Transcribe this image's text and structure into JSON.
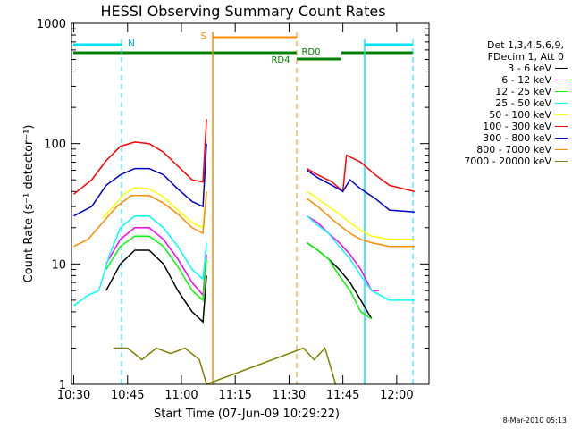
{
  "chart_data": {
    "type": "line",
    "title": "HESSI Observing Summary Count Rates",
    "xlabel": "Start Time (07-Jun-09 10:29:22)",
    "ylabel": "Count Rate (s⁻¹ detector⁻¹)",
    "yscale": "log",
    "ylim": [
      1,
      1000
    ],
    "xlim": [
      "10:29:22",
      "12:09:00"
    ],
    "x_ticks": [
      "10:30",
      "10:45",
      "11:00",
      "11:15",
      "11:30",
      "11:45",
      "12:00"
    ],
    "y_ticks": [
      "1",
      "10",
      "100",
      "1000"
    ],
    "grid": false,
    "legend_position": "right",
    "legend_header": [
      "Det 1,3,4,5,6,9,",
      "FDecim 1, Att 0"
    ],
    "series": [
      {
        "name": "3 - 6 keV",
        "color": "#000000",
        "x": [
          "10:31",
          "10:35",
          "10:39",
          "10:43",
          "10:47",
          "10:51",
          "10:55",
          "10:59",
          "11:03",
          "11:06",
          "11:07",
          "11:08",
          "11:35",
          "11:38",
          "11:41",
          "11:44",
          "11:47",
          "11:50",
          "11:53"
        ],
        "values": [
          null,
          null,
          6,
          10,
          13,
          13,
          10,
          6,
          4,
          3.3,
          8,
          null,
          15,
          13,
          11,
          9,
          7,
          5,
          3.5
        ]
      },
      {
        "name": "6 - 12 keV",
        "color": "#ff00ff",
        "x": [
          "10:39",
          "10:43",
          "10:47",
          "10:51",
          "10:55",
          "10:59",
          "11:03",
          "11:06",
          "11:07",
          "11:08",
          "11:35",
          "11:38",
          "11:41",
          "11:44",
          "11:47",
          "11:50",
          "11:53",
          "11:55"
        ],
        "values": [
          10,
          16,
          20,
          20,
          16,
          11,
          7,
          5.5,
          12,
          null,
          25,
          22,
          18,
          15,
          12,
          9,
          6,
          6
        ]
      },
      {
        "name": "12 - 25 keV",
        "color": "#00ff00",
        "x": [
          "10:39",
          "10:43",
          "10:47",
          "10:51",
          "10:55",
          "10:59",
          "11:03",
          "11:06",
          "11:07",
          "11:08",
          "11:35",
          "11:38",
          "11:41",
          "11:44",
          "11:47",
          "11:50",
          "11:53"
        ],
        "values": [
          9,
          14,
          17,
          17,
          14,
          9.5,
          6,
          5,
          11,
          null,
          15,
          13,
          11,
          8,
          6,
          4,
          3.5
        ]
      },
      {
        "name": "25 - 50 keV",
        "color": "#00ffff",
        "x": [
          "10:30",
          "10:34",
          "10:37",
          "10:40",
          "10:43",
          "10:47",
          "10:51",
          "10:55",
          "10:59",
          "11:03",
          "11:06",
          "11:07",
          "11:08",
          "11:35",
          "11:38",
          "11:41",
          "11:44",
          "11:47",
          "11:50",
          "11:53",
          "11:58",
          "12:05"
        ],
        "values": [
          4.5,
          5.5,
          6,
          12,
          20,
          25,
          25,
          20,
          14,
          9,
          7.5,
          15,
          null,
          25,
          21,
          18,
          14,
          11,
          8,
          6,
          5,
          5
        ]
      },
      {
        "name": "50 - 100 keV",
        "color": "#ffff00",
        "x": [
          "10:38",
          "10:41",
          "10:44",
          "10:47",
          "10:51",
          "10:55",
          "10:59",
          "11:03",
          "11:06",
          "11:07",
          "11:08",
          "11:35",
          "11:38",
          "11:41",
          "11:44",
          "11:47",
          "11:50",
          "11:53",
          "11:58",
          "12:05"
        ],
        "values": [
          24,
          30,
          38,
          43,
          42,
          36,
          28,
          22,
          20,
          40,
          null,
          40,
          35,
          30,
          26,
          22,
          19,
          17,
          16,
          16
        ]
      },
      {
        "name": "100 - 300 keV",
        "color": "#ff0000",
        "x": [
          "10:30",
          "10:35",
          "10:39",
          "10:43",
          "10:47",
          "10:51",
          "10:55",
          "10:59",
          "11:03",
          "11:06",
          "11:07",
          "11:08",
          "11:35",
          "11:38",
          "11:42",
          "11:45",
          "11:46",
          "11:50",
          "11:54",
          "11:58",
          "12:05"
        ],
        "values": [
          38,
          50,
          72,
          95,
          103,
          100,
          85,
          65,
          50,
          48,
          160,
          null,
          62,
          55,
          48,
          40,
          80,
          70,
          55,
          45,
          40
        ]
      },
      {
        "name": "300 - 800 keV",
        "color": "#0000cc",
        "x": [
          "10:30",
          "10:35",
          "10:39",
          "10:43",
          "10:47",
          "10:51",
          "10:55",
          "10:59",
          "11:03",
          "11:06",
          "11:07",
          "11:08",
          "11:35",
          "11:38",
          "11:42",
          "11:45",
          "11:47",
          "11:50",
          "11:54",
          "11:58",
          "12:05"
        ],
        "values": [
          25,
          30,
          45,
          55,
          62,
          62,
          55,
          42,
          33,
          30,
          100,
          null,
          60,
          52,
          45,
          40,
          50,
          42,
          35,
          28,
          27
        ]
      },
      {
        "name": "800 - 7000 keV",
        "color": "#ff8c00",
        "x": [
          "10:30",
          "10:34",
          "10:38",
          "10:42",
          "10:46",
          "10:51",
          "10:55",
          "10:59",
          "11:03",
          "11:06",
          "11:07",
          "11:08",
          "11:35",
          "11:38",
          "11:41",
          "11:44",
          "11:47",
          "11:50",
          "11:53",
          "11:58",
          "12:05"
        ],
        "values": [
          14,
          16,
          22,
          30,
          37,
          37,
          32,
          26,
          20,
          18,
          40,
          null,
          35,
          30,
          25,
          21,
          18,
          16,
          15,
          14,
          14
        ]
      },
      {
        "name": "7000 - 20000 keV",
        "color": "#808000",
        "x": [
          "10:41",
          "10:45",
          "10:49",
          "10:53",
          "10:57",
          "11:01",
          "11:05",
          "11:07",
          "11:34",
          "11:37",
          "11:40",
          "11:43"
        ],
        "values": [
          2,
          2,
          1.6,
          2,
          1.8,
          2,
          1.6,
          1,
          2,
          1.6,
          2,
          1
        ]
      }
    ],
    "annotations": {
      "n_label": "N",
      "s_label": "S",
      "rd0_label": "RD0",
      "rd4_label": "RD4"
    }
  },
  "timestamp": "8-Mar-2010 05:13"
}
